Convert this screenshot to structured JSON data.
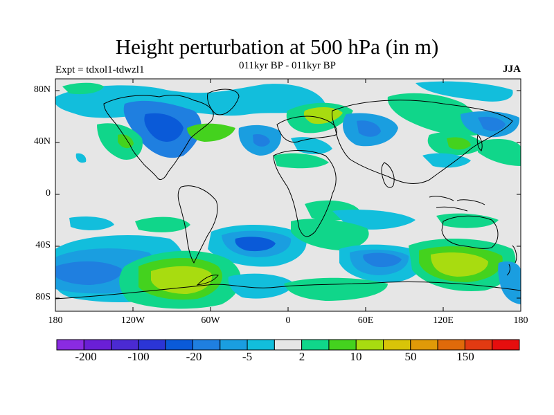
{
  "title": "Height perturbation at 500 hPa (in m)",
  "subtitle": "011kyr BP - 011kyr BP",
  "experiment": "Expt = tdxol1-tdwzl1",
  "season": "JJA",
  "axes": {
    "lat_labels": [
      "80N",
      "40N",
      "0",
      "40S",
      "80S"
    ],
    "lon_labels": [
      "180",
      "120W",
      "60W",
      "0",
      "60E",
      "120E",
      "180"
    ]
  },
  "colorbar": {
    "colors": [
      "#8a2be2",
      "#6a1fd6",
      "#4b2ad2",
      "#2b35d6",
      "#0a5ad8",
      "#1f7fe0",
      "#1a9ee0",
      "#12bedc",
      "#e6e6e6",
      "#10d68a",
      "#44d21e",
      "#a8dc10",
      "#d8c408",
      "#e09a08",
      "#e06a0a",
      "#e23a12",
      "#e60e0e"
    ],
    "tick_labels": [
      "-200",
      "-100",
      "-20",
      "-5",
      "2",
      "10",
      "50",
      "150"
    ]
  },
  "palette": {
    "ocean_bg": "#e6e6e6",
    "neg1": "#12bedc",
    "neg2": "#1a9ee0",
    "neg3": "#1f7fe0",
    "neg4": "#0a5ad8",
    "pos1": "#10d68a",
    "pos2": "#44d21e",
    "pos3": "#a8dc10"
  }
}
